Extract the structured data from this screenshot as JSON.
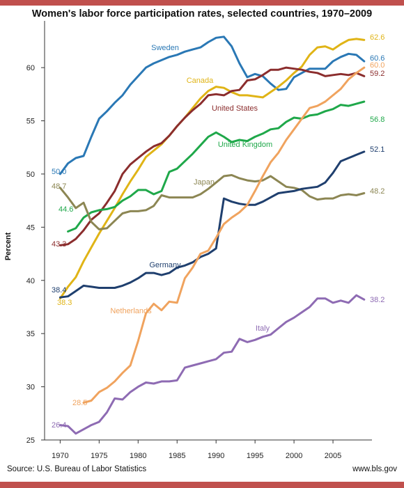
{
  "title": "Women's labor force participation rates, selected countries, 1970–2009",
  "footer": {
    "source": "Source: U.S. Bureau of Labor Statistics",
    "site": "www.bls.gov"
  },
  "colors": {
    "accent_bar": "#c0504d",
    "axis": "#333333"
  },
  "chart_data": {
    "type": "line",
    "title": "Women's labor force participation rates, selected countries, 1970–2009",
    "xlabel": "",
    "ylabel": "Percent",
    "xlim": [
      1968,
      2010
    ],
    "ylim": [
      25,
      64
    ],
    "x_ticks": [
      1970,
      1975,
      1980,
      1985,
      1990,
      1995,
      2000,
      2005
    ],
    "y_ticks": [
      25,
      30,
      35,
      40,
      45,
      50,
      55,
      60
    ],
    "grid": false,
    "legend": "inline labels",
    "series": [
      {
        "name": "Sweden",
        "color": "#2a78b5",
        "start_label": "50.0",
        "end_label": "60.6",
        "x": [
          1970,
          1971,
          1972,
          1973,
          1974,
          1975,
          1976,
          1977,
          1978,
          1979,
          1980,
          1981,
          1982,
          1983,
          1984,
          1985,
          1986,
          1987,
          1988,
          1989,
          1990,
          1991,
          1992,
          1993,
          1994,
          1995,
          1996,
          1997,
          1998,
          1999,
          2000,
          2001,
          2002,
          2003,
          2004,
          2005,
          2006,
          2007,
          2008,
          2009
        ],
        "y": [
          50.0,
          51.0,
          51.5,
          51.7,
          53.5,
          55.2,
          55.9,
          56.7,
          57.4,
          58.4,
          59.2,
          60.0,
          60.4,
          60.7,
          61.0,
          61.2,
          61.5,
          61.7,
          61.9,
          62.4,
          62.8,
          62.9,
          62.0,
          60.4,
          59.1,
          59.4,
          59.2,
          58.5,
          57.9,
          58.0,
          59.1,
          59.5,
          59.9,
          59.9,
          59.9,
          60.6,
          61.0,
          61.3,
          61.2,
          60.6
        ]
      },
      {
        "name": "Canada",
        "color": "#e0b416",
        "start_label": "38.3",
        "end_label": "62.6",
        "x": [
          1970,
          1971,
          1972,
          1973,
          1974,
          1975,
          1976,
          1977,
          1978,
          1979,
          1980,
          1981,
          1982,
          1983,
          1984,
          1985,
          1986,
          1987,
          1988,
          1989,
          1990,
          1991,
          1992,
          1993,
          1994,
          1995,
          1996,
          1997,
          1998,
          1999,
          2000,
          2001,
          2002,
          2003,
          2004,
          2005,
          2006,
          2007,
          2008,
          2009
        ],
        "y": [
          38.3,
          39.4,
          40.3,
          41.8,
          43.1,
          44.4,
          45.6,
          46.8,
          48.1,
          49.3,
          50.4,
          51.6,
          52.2,
          52.8,
          53.6,
          54.5,
          55.3,
          56.2,
          57.1,
          57.8,
          58.2,
          58.1,
          57.7,
          57.4,
          57.4,
          57.3,
          57.2,
          57.7,
          58.2,
          58.8,
          59.5,
          60.1,
          61.2,
          61.9,
          62.0,
          61.7,
          62.2,
          62.6,
          62.7,
          62.6
        ]
      },
      {
        "name": "United States",
        "color": "#8b2d2d",
        "start_label": "43.3",
        "end_label": "59.2",
        "x": [
          1970,
          1971,
          1972,
          1973,
          1974,
          1975,
          1976,
          1977,
          1978,
          1979,
          1980,
          1981,
          1982,
          1983,
          1984,
          1985,
          1986,
          1987,
          1988,
          1989,
          1990,
          1991,
          1992,
          1993,
          1994,
          1995,
          1996,
          1997,
          1998,
          1999,
          2000,
          2001,
          2002,
          2003,
          2004,
          2005,
          2006,
          2007,
          2008,
          2009
        ],
        "y": [
          43.3,
          43.4,
          43.9,
          44.7,
          45.7,
          46.3,
          47.3,
          48.4,
          50.0,
          50.9,
          51.5,
          52.1,
          52.6,
          52.9,
          53.6,
          54.5,
          55.3,
          56.0,
          56.6,
          57.4,
          57.5,
          57.4,
          57.8,
          57.9,
          58.8,
          58.9,
          59.3,
          59.8,
          59.8,
          60.0,
          59.9,
          59.8,
          59.6,
          59.5,
          59.2,
          59.3,
          59.4,
          59.3,
          59.5,
          59.2
        ]
      },
      {
        "name": "United Kingdom",
        "color": "#1fa84a",
        "start_label": "44.6",
        "end_label": "56.8",
        "x": [
          1971,
          1972,
          1973,
          1974,
          1975,
          1976,
          1977,
          1978,
          1979,
          1980,
          1981,
          1982,
          1983,
          1984,
          1985,
          1986,
          1987,
          1988,
          1989,
          1990,
          1991,
          1992,
          1993,
          1994,
          1995,
          1996,
          1997,
          1998,
          1999,
          2000,
          2001,
          2002,
          2003,
          2004,
          2005,
          2006,
          2007,
          2008,
          2009
        ],
        "y": [
          44.6,
          44.9,
          45.9,
          46.4,
          46.6,
          46.7,
          46.9,
          47.5,
          47.9,
          48.5,
          48.5,
          48.1,
          48.4,
          50.2,
          50.5,
          51.2,
          51.9,
          52.7,
          53.5,
          53.9,
          53.5,
          53.0,
          53.2,
          53.1,
          53.5,
          53.8,
          54.2,
          54.3,
          54.9,
          55.3,
          55.2,
          55.5,
          55.6,
          55.9,
          56.1,
          56.5,
          56.4,
          56.6,
          56.8
        ]
      },
      {
        "name": "Japan",
        "color": "#8c8653",
        "start_label": "48.7",
        "end_label": "48.2",
        "x": [
          1970,
          1971,
          1972,
          1973,
          1974,
          1975,
          1976,
          1977,
          1978,
          1979,
          1980,
          1981,
          1982,
          1983,
          1984,
          1985,
          1986,
          1987,
          1988,
          1989,
          1990,
          1991,
          1992,
          1993,
          1994,
          1995,
          1996,
          1997,
          1998,
          1999,
          2000,
          2001,
          2002,
          2003,
          2004,
          2005,
          2006,
          2007,
          2008,
          2009
        ],
        "y": [
          48.7,
          47.8,
          46.8,
          47.3,
          45.5,
          44.8,
          44.9,
          45.6,
          46.3,
          46.5,
          46.5,
          46.6,
          47.0,
          48.0,
          47.8,
          47.8,
          47.8,
          47.8,
          48.1,
          48.6,
          49.2,
          49.8,
          49.9,
          49.6,
          49.4,
          49.3,
          49.4,
          49.8,
          49.3,
          48.8,
          48.7,
          48.5,
          47.9,
          47.6,
          47.7,
          47.7,
          48.0,
          48.1,
          48.0,
          48.2
        ]
      },
      {
        "name": "Germany",
        "color": "#1f3f6e",
        "start_label": "38.4",
        "end_label": "52.1",
        "x": [
          1970,
          1971,
          1972,
          1973,
          1974,
          1975,
          1976,
          1977,
          1978,
          1979,
          1980,
          1981,
          1982,
          1983,
          1984,
          1985,
          1986,
          1987,
          1988,
          1989,
          1990,
          1991,
          1992,
          1993,
          1994,
          1995,
          1996,
          1997,
          1998,
          1999,
          2000,
          2001,
          2002,
          2003,
          2004,
          2005,
          2006,
          2007,
          2008,
          2009
        ],
        "y": [
          38.4,
          38.5,
          39.0,
          39.5,
          39.4,
          39.3,
          39.3,
          39.3,
          39.5,
          39.8,
          40.2,
          40.7,
          40.7,
          40.5,
          40.7,
          41.2,
          41.4,
          41.7,
          42.2,
          42.5,
          43.0,
          47.7,
          47.4,
          47.2,
          47.1,
          47.1,
          47.4,
          47.8,
          48.2,
          48.3,
          48.4,
          48.6,
          48.7,
          48.8,
          49.2,
          50.1,
          51.2,
          51.5,
          51.8,
          52.1
        ]
      },
      {
        "name": "Netherlands",
        "color": "#f0a35e",
        "start_label": "28.5",
        "end_label": "60.0",
        "x": [
          1973,
          1974,
          1975,
          1976,
          1977,
          1978,
          1979,
          1980,
          1981,
          1982,
          1983,
          1984,
          1985,
          1986,
          1987,
          1988,
          1989,
          1990,
          1991,
          1992,
          1993,
          1994,
          1995,
          1996,
          1997,
          1998,
          1999,
          2000,
          2001,
          2002,
          2003,
          2004,
          2005,
          2006,
          2007,
          2008,
          2009
        ],
        "y": [
          28.5,
          28.7,
          29.5,
          29.9,
          30.5,
          31.3,
          32.0,
          34.3,
          36.9,
          37.8,
          37.2,
          38.0,
          37.9,
          40.2,
          41.2,
          42.5,
          42.8,
          44.0,
          45.3,
          45.9,
          46.4,
          47.1,
          48.4,
          49.8,
          51.1,
          52.0,
          53.2,
          54.2,
          55.2,
          56.2,
          56.4,
          56.8,
          57.4,
          58.0,
          58.9,
          59.5,
          60.0
        ]
      },
      {
        "name": "Italy",
        "color": "#8e6bb3",
        "start_label": "26.4",
        "end_label": "38.2",
        "x": [
          1970,
          1971,
          1972,
          1973,
          1974,
          1975,
          1976,
          1977,
          1978,
          1979,
          1980,
          1981,
          1982,
          1983,
          1984,
          1985,
          1986,
          1987,
          1988,
          1989,
          1990,
          1991,
          1992,
          1993,
          1994,
          1995,
          1996,
          1997,
          1998,
          1999,
          2000,
          2001,
          2002,
          2003,
          2004,
          2005,
          2006,
          2007,
          2008,
          2009
        ],
        "y": [
          26.4,
          26.3,
          25.6,
          26.0,
          26.4,
          26.7,
          27.6,
          28.9,
          28.8,
          29.5,
          30.0,
          30.4,
          30.3,
          30.5,
          30.5,
          30.6,
          31.8,
          32.0,
          32.2,
          32.4,
          32.6,
          33.2,
          33.3,
          34.5,
          34.2,
          34.4,
          34.7,
          34.9,
          35.5,
          36.1,
          36.5,
          37.0,
          37.5,
          38.3,
          38.3,
          37.9,
          38.1,
          37.9,
          38.6,
          38.2
        ]
      }
    ]
  }
}
